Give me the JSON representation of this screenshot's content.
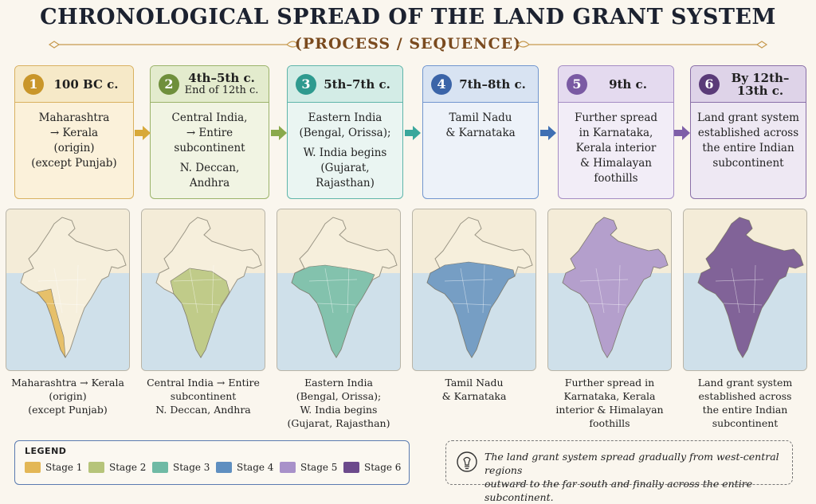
{
  "title": "CHRONOLOGICAL SPREAD OF THE LAND GRANT SYSTEM",
  "subtitle": "(PROCESS / SEQUENCE)",
  "stages": [
    {
      "num": "1",
      "label": "100 BC c.",
      "sublabel": "",
      "color": "#c9962a",
      "head_bg": "#f6e9c8",
      "body_bg": "#fbf1da",
      "border": "#d9b160",
      "fill": "#e3b756",
      "body": [
        "Maharashtra",
        "→ Kerala",
        "(origin)",
        "(except Punjab)"
      ],
      "caption": [
        "Maharashtra → Kerala",
        "(origin)",
        "(except Punjab)"
      ]
    },
    {
      "num": "2",
      "label": "4th–5th c.",
      "sublabel": "End of 12th c.",
      "color": "#6f8f3c",
      "head_bg": "#e3ebcd",
      "body_bg": "#f1f4e3",
      "border": "#9bb36a",
      "fill": "#b6c47a",
      "body": [
        "Central India,",
        "→ Entire",
        "subcontinent",
        "",
        "N. Deccan,",
        "Andhra"
      ],
      "caption": [
        "Central India → Entire",
        "subcontinent",
        "N. Deccan, Andhra"
      ]
    },
    {
      "num": "3",
      "label": "5th–7th c.",
      "sublabel": "",
      "color": "#2f9a8f",
      "head_bg": "#d3ece6",
      "body_bg": "#eaf5f2",
      "border": "#5fb5aa",
      "fill": "#6fbaa5",
      "body": [
        "Eastern India",
        "(Bengal, Orissa);",
        "",
        "W. India begins",
        "(Gujarat,",
        "Rajasthan)"
      ],
      "caption": [
        "Eastern India",
        "(Bengal, Orissa);",
        "W. India begins",
        "(Gujarat, Rajasthan)"
      ]
    },
    {
      "num": "4",
      "label": "7th–8th c.",
      "sublabel": "",
      "color": "#3b64a8",
      "head_bg": "#d8e3f2",
      "body_bg": "#edf2f9",
      "border": "#7196cf",
      "fill": "#5f8fc0",
      "body": [
        "Tamil Nadu",
        "& Karnataka"
      ],
      "caption": [
        "Tamil Nadu",
        "& Karnataka"
      ]
    },
    {
      "num": "5",
      "label": "9th c.",
      "sublabel": "",
      "color": "#7a5aa3",
      "head_bg": "#e4daef",
      "body_bg": "#f2edf7",
      "border": "#a48cc4",
      "fill": "#a891c9",
      "body": [
        "Further spread",
        "in Karnataka,",
        "Kerala interior",
        "& Himalayan",
        "foothills"
      ],
      "caption": [
        "Further spread in",
        "Karnataka, Kerala",
        "interior & Himalayan",
        "foothills"
      ]
    },
    {
      "num": "6",
      "label": "By 12th–13th c.",
      "sublabel": "",
      "color": "#5a3b78",
      "head_bg": "#ded3e8",
      "body_bg": "#eee8f3",
      "border": "#8a6fa8",
      "fill": "#6c4a8c",
      "body": [
        "Land grant system",
        "established across",
        "the entire Indian",
        "subcontinent"
      ],
      "caption": [
        "Land grant system",
        "established across",
        "the entire Indian",
        "subcontinent"
      ]
    }
  ],
  "arrow_colors": [
    "#d8a93a",
    "#8aa94c",
    "#3aa79c",
    "#3f6fb3",
    "#7e5fa8"
  ],
  "legend": {
    "title": "LEGEND",
    "items": [
      {
        "label": "Stage 1",
        "color": "#e3b756"
      },
      {
        "label": "Stage 2",
        "color": "#b6c47a"
      },
      {
        "label": "Stage 3",
        "color": "#6fbaa5"
      },
      {
        "label": "Stage 4",
        "color": "#5f8fc0"
      },
      {
        "label": "Stage 5",
        "color": "#a891c9"
      },
      {
        "label": "Stage 6",
        "color": "#6c4a8c"
      }
    ]
  },
  "note": {
    "icon": "lightbulb-icon",
    "line1": "The land grant system spread gradually from west-central regions",
    "line2": "outward to the far south and finally across the entire subcontinent."
  }
}
